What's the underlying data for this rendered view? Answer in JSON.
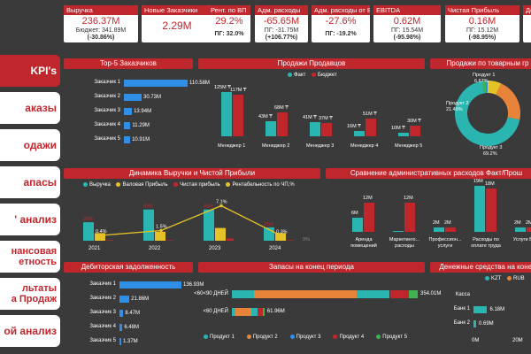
{
  "colors": {
    "red": "#c0272d",
    "teal": "#2bb5b0",
    "orange": "#e8843a",
    "yellow": "#e6c229",
    "blue": "#2f8ee6",
    "green": "#3fb34f"
  },
  "nav": [
    {
      "label": "KPI's"
    },
    {
      "label": "аказы"
    },
    {
      "label": "одажи"
    },
    {
      "label": "апасы"
    },
    {
      "label": "' анализ"
    },
    {
      "label1": "нансовая",
      "label2": "етность"
    },
    {
      "label1": "льтаты",
      "label2": "а Продаж"
    },
    {
      "label": "ой анализ"
    }
  ],
  "kpis": [
    {
      "title": "Выручка",
      "value": "236.37M",
      "sub1": "Бюджет: 341.89M",
      "sub2": "(-30.86%)"
    },
    {
      "title": "Новые Заказчики",
      "value": "2.29M"
    },
    {
      "title": "Рент. по ВП",
      "value": "29.2%",
      "sub1": "ПГ: 32.0%"
    },
    {
      "title": "Адм. расходы",
      "value": "-65.65M",
      "sub1": "ПГ: -31.75M",
      "sub2": "(+106.77%)"
    },
    {
      "title": "Адм. расходы от В",
      "value": "-27.6%",
      "sub1": "ПГ: -19.2%"
    },
    {
      "title": "EBITDA",
      "value": "0.62M",
      "sub1": "ПГ: 15.54M",
      "sub2": "(-95.98%)"
    },
    {
      "title": "Чистая Прибыль",
      "value": "0.16M",
      "sub1": "ПГ: 15.12M",
      "sub2": "(-98.95%)"
    },
    {
      "title": "Дене",
      "value": ""
    }
  ],
  "panels": {
    "top5": "Top-5  Заказчиков",
    "sales_mgr": "Продажи Продавцов",
    "sales_group": "Продажи по товарным гр",
    "dynamics": "Динамика Выручки и Чистой Прибыли",
    "admin": "Сравнение административных расходов Факт/Прош",
    "receivables": "Дебиторская задолженность",
    "stocks": "Запасы на конец периода",
    "cash": "Денежные средства на конец"
  },
  "top5": [
    {
      "name": "Заказчик 1",
      "value": 110.58,
      "label": "110.58M"
    },
    {
      "name": "Заказчик 2",
      "value": 30.73,
      "label": "30.73M"
    },
    {
      "name": "Заказчик 3",
      "value": 13.94,
      "label": "13.94M"
    },
    {
      "name": "Заказчик 4",
      "value": 11.29,
      "label": "11.29M"
    },
    {
      "name": "Заказчик 5",
      "value": 10.91,
      "label": "10.91M"
    }
  ],
  "sales_mgr": {
    "legend": [
      "Факт",
      "Бюджет"
    ],
    "managers": [
      {
        "name": "Менеджер 1",
        "fact": 125,
        "budget": 117,
        "fact_label": "125M ₸",
        "budget_label": "117M ₸"
      },
      {
        "name": "Менеджер 2",
        "fact": 43,
        "budget": 68,
        "fact_label": "43M ₸",
        "budget_label": "68M ₸"
      },
      {
        "name": "Менеджер 3",
        "fact": 41,
        "budget": 37,
        "fact_label": "41M ₸",
        "budget_label": "37M ₸"
      },
      {
        "name": "Менеджер 4",
        "fact": 16,
        "budget": 51,
        "fact_label": "16M ₸",
        "budget_label": "51M ₸"
      },
      {
        "name": "Менеджер 5",
        "fact": 10,
        "budget": 30,
        "fact_label": "10M ₸",
        "budget_label": "30M ₸"
      }
    ]
  },
  "sales_group": [
    {
      "name": "Продукт 1",
      "pct": 6.67,
      "label": "Продукт 1\n6.67%"
    },
    {
      "name": "Продукт 2",
      "pct": 21.48,
      "label": "Продукт 2\n21.48%"
    },
    {
      "name": "Продукт 3",
      "pct": 69.2,
      "label": "Продукт 3\n69.2%"
    },
    {
      "name": "Продукт 4",
      "pct": 1.65
    },
    {
      "name": "Продукт 5",
      "pct": 1.0
    }
  ],
  "dynamics": {
    "legend": [
      "Выручка",
      "Валовая Прибыль",
      "Чистая прибыль",
      "Рентабельность по ЧП,%"
    ],
    "years": [
      "2021",
      "2022",
      "2023",
      "2024"
    ],
    "revenue": [
      29,
      49,
      49,
      21
    ],
    "revenue_labels": [
      "29M",
      "49M",
      "49M",
      "21M"
    ],
    "gross": [
      12,
      14,
      20,
      12
    ],
    "net": [
      0.1,
      0.7,
      3.5,
      0.1
    ],
    "rent": [
      0.4,
      1.5,
      7.1,
      0.3
    ],
    "rent_labels": [
      "0.4%",
      "1.5%",
      "7.1%",
      "0.3%"
    ],
    "right_axis": "0%"
  },
  "admin": {
    "cats": [
      {
        "name": "Аренда\nпомещений",
        "fact": 6,
        "prev": 12,
        "fact_label": "6M",
        "prev_label": "12M"
      },
      {
        "name": "Маркетинго...\nрасходы",
        "fact": 0.5,
        "prev": 12,
        "fact_label": "",
        "prev_label": "12M"
      },
      {
        "name": "Профессион...\nуслуги",
        "fact": 2,
        "prev": 2,
        "fact_label": "2M",
        "prev_label": "2M"
      },
      {
        "name": "Расходы по\nоплате труда",
        "fact": 19,
        "prev": 18,
        "fact_label": "19M",
        "prev_label": "18M"
      },
      {
        "name": "Услуги Банк",
        "fact": 2,
        "prev": 2,
        "fact_label": "2M",
        "prev_label": "2M"
      }
    ]
  },
  "receivables": [
    {
      "name": "Заказчик 1",
      "value": 136.93,
      "label": "136.93M"
    },
    {
      "name": "Заказчик 2",
      "value": 21.86,
      "label": "21.86M"
    },
    {
      "name": "Заказчик 3",
      "value": 8.47,
      "label": "8.47M"
    },
    {
      "name": "Заказчик 4",
      "value": 6.48,
      "label": "6.48M"
    },
    {
      "name": "Заказчик 5",
      "value": 1.37,
      "label": "1.37M"
    }
  ],
  "stocks": {
    "rows": [
      {
        "name": "<60<90 ДНЕЙ",
        "value": 354.01,
        "label": "354.01M"
      },
      {
        "name": "<60 ДНЕЙ",
        "value": 61.96,
        "label": "61.96M"
      }
    ],
    "legend": [
      "Продукт 1",
      "Продукт 2",
      "Продукт 3",
      "Продукт 4",
      "Продукт 5"
    ]
  },
  "cash": {
    "legend": [
      "KZT",
      "RUB"
    ],
    "rows": [
      {
        "name": "Касса",
        "value": 0,
        "label": ""
      },
      {
        "name": "Банк 1",
        "value": 6.18,
        "label": "6.18M"
      },
      {
        "name": "Банк 2",
        "value": 0.69,
        "label": "0.69M"
      }
    ],
    "axis": [
      "0M",
      "20M"
    ]
  }
}
